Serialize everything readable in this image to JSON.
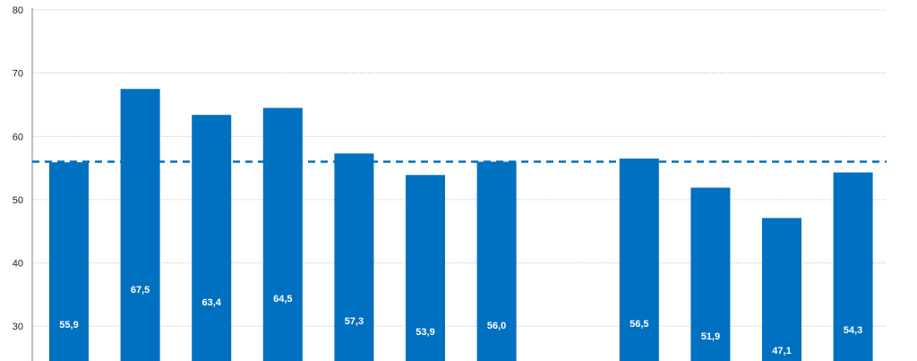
{
  "chart_data": {
    "type": "bar",
    "categories": [
      "",
      "",
      "",
      "",
      "",
      "",
      "",
      "",
      "",
      "",
      "",
      ""
    ],
    "values": [
      55.9,
      67.5,
      63.4,
      64.5,
      57.3,
      53.9,
      56.0,
      null,
      56.5,
      51.9,
      47.1,
      54.3
    ],
    "value_labels": [
      "55,9",
      "67,5",
      "63,4",
      "64,5",
      "57,3",
      "53,9",
      "56,0",
      "",
      "56,5",
      "51,9",
      "47,1",
      "54,3"
    ],
    "reference_line": 56.0,
    "ylim": [
      24.5,
      80
    ],
    "yticks": [
      30,
      40,
      50,
      60,
      70,
      80
    ],
    "ytick_labels": [
      "30",
      "40",
      "50",
      "60",
      "70",
      "80"
    ],
    "grid": true,
    "title": "",
    "xlabel": "",
    "ylabel": ""
  },
  "colors": {
    "bar": "#0070c0",
    "reference_line": "#0070c0",
    "label": "#ffffff"
  }
}
